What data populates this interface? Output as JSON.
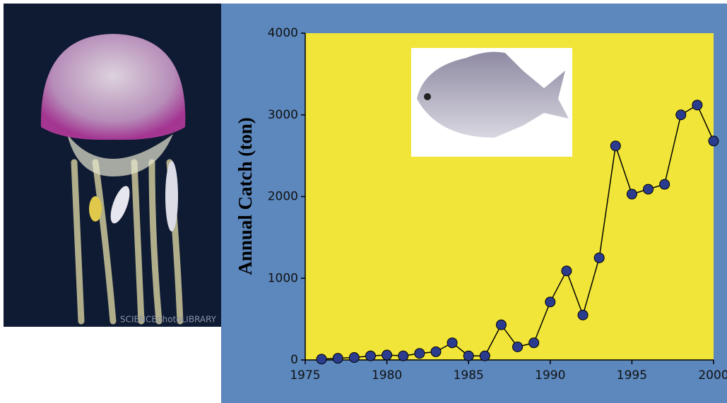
{
  "chart_data": {
    "type": "line",
    "y_label": "Annual Catch (ton)",
    "x": [
      1976,
      1977,
      1978,
      1979,
      1980,
      1981,
      1982,
      1983,
      1984,
      1985,
      1986,
      1987,
      1988,
      1989,
      1990,
      1991,
      1992,
      1993,
      1994,
      1995,
      1996,
      1997,
      1998,
      1999,
      2000
    ],
    "series": [
      {
        "name": "Annual Catch",
        "color": "#2b3c8f",
        "values": [
          10,
          20,
          30,
          50,
          60,
          50,
          80,
          100,
          210,
          50,
          50,
          430,
          160,
          210,
          710,
          1090,
          550,
          1250,
          2620,
          2030,
          2090,
          2150,
          3000,
          3120,
          2680
        ]
      }
    ],
    "xlim": [
      1975,
      2000
    ],
    "xticks": [
      1975,
      1980,
      1985,
      1990,
      1995,
      2000
    ],
    "ylim": [
      0,
      4000
    ],
    "yticks": [
      0,
      1000,
      2000,
      3000,
      4000
    ]
  },
  "photo": {
    "credit": "SCIENCEphotoLIBRARY"
  }
}
